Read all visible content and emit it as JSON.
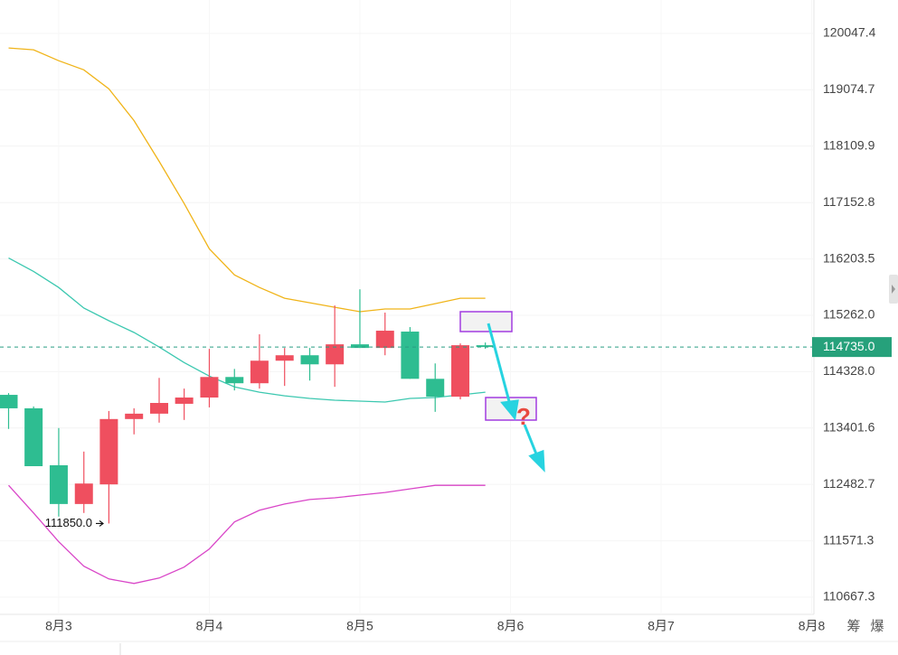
{
  "chart_data": {
    "type": "candlestick",
    "x": [
      2.667,
      2.833,
      3,
      3.167,
      3.333,
      3.5,
      3.667,
      3.833,
      4,
      4.167,
      4.333,
      4.5,
      4.667,
      4.833,
      5,
      5.167,
      5.333,
      5.5,
      5.667,
      5.833
    ],
    "open": [
      113946,
      113725,
      112794,
      112165,
      112483,
      113549,
      113637,
      113799,
      113902,
      114240,
      114137,
      114509,
      114599,
      114449,
      114780,
      114720,
      114991,
      114210,
      113916,
      114765
    ],
    "high": [
      113975,
      113755,
      113402,
      113017,
      113681,
      113725,
      114225,
      114049,
      114705,
      114373,
      114946,
      114720,
      114720,
      115426,
      115695,
      115307,
      115066,
      114464,
      114795,
      114810
    ],
    "low": [
      113387,
      112779,
      111962,
      112020,
      111850,
      113298,
      113490,
      113534,
      113740,
      114019,
      114049,
      114093,
      114181,
      114078,
      114720,
      114599,
      114210,
      113667,
      113872,
      114705
    ],
    "close": [
      113725,
      112779,
      112165,
      112497,
      113549,
      113637,
      113813,
      113902,
      114240,
      114137,
      114509,
      114599,
      114449,
      114780,
      114720,
      115006,
      114210,
      113916,
      114765,
      114735
    ],
    "up_color": "#ef4f5f",
    "down_color": "#2ebd91",
    "bands": [
      {
        "color": "#f0b419",
        "values": [
          119796,
          119765,
          119576,
          119418,
          119090,
          118546,
          117852,
          117137,
          116372,
          115935,
          115726,
          115546,
          115471,
          115396,
          115322,
          115367,
          115367,
          115456,
          115546,
          115546
        ]
      },
      {
        "color": "#3cc8b0",
        "values": [
          116218,
          115994,
          115726,
          115382,
          115172,
          114976,
          114735,
          114479,
          114254,
          114078,
          113990,
          113931,
          113887,
          113857,
          113843,
          113828,
          113887,
          113902,
          113946,
          113990
        ]
      },
      {
        "color": "#d946c8",
        "values": [
          112468,
          112020,
          111557,
          111163,
          110959,
          110886,
          110973,
          111148,
          111440,
          111876,
          112063,
          112164,
          112237,
          112266,
          112309,
          112352,
          112410,
          112468,
          112468,
          112468
        ]
      }
    ],
    "xlim": [
      2.61,
      8.015
    ],
    "xticks": [
      {
        "value": 3,
        "label": "8月3"
      },
      {
        "value": 4,
        "label": "8月4"
      },
      {
        "value": 5,
        "label": "8月5"
      },
      {
        "value": 6,
        "label": "8月6"
      },
      {
        "value": 7,
        "label": "8月7"
      },
      {
        "value": 8,
        "label": "8月8"
      }
    ],
    "ylim": [
      110393,
      120628
    ],
    "log_scale": true,
    "yticks": [
      120047.4,
      119074.7,
      118109.9,
      117152.8,
      116203.5,
      {
        "value": 115262,
        "label": "115262.0"
      },
      {
        "value": 114328,
        "label": "114328.0"
      },
      113401.6,
      112482.7,
      111571.3,
      110667.3
    ],
    "grid": true,
    "last_price": {
      "value": 114735,
      "label": "114735.0"
    },
    "low_marker": {
      "value": 111850,
      "label": "111850.0"
    },
    "annotation": "?",
    "footer_labels": [
      "筹",
      "爆"
    ]
  }
}
